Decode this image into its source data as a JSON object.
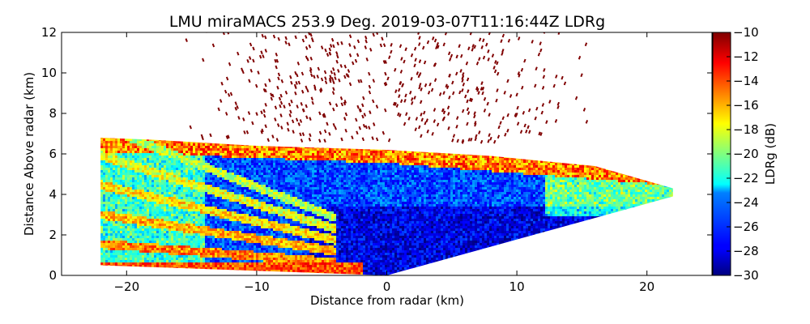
{
  "chart_data": {
    "type": "heatmap",
    "title": "LMU miraMACS 253.9 Deg. 2019-03-07T11:16:44Z  LDRg",
    "xlabel": "Distance from radar (km)",
    "ylabel": "Distance Above radar  (km)",
    "xlim": [
      -25,
      25
    ],
    "ylim": [
      0,
      12
    ],
    "xticks": [
      -20,
      -10,
      0,
      10,
      20
    ],
    "xtick_labels": [
      "−20",
      "−10",
      "0",
      "10",
      "20"
    ],
    "yticks": [
      0,
      2,
      4,
      6,
      8,
      10,
      12
    ],
    "ytick_labels": [
      "0",
      "2",
      "4",
      "6",
      "8",
      "10",
      "12"
    ],
    "colorbar": {
      "label": "LDRg (dB)",
      "range": [
        -30,
        -10
      ],
      "ticks": [
        -10,
        -12,
        -14,
        -16,
        -18,
        -20,
        -22,
        -24,
        -26,
        -28,
        -30
      ],
      "tick_labels": [
        "−10",
        "−12",
        "−14",
        "−16",
        "−18",
        "−20",
        "−22",
        "−24",
        "−26",
        "−28",
        "−30"
      ],
      "colormap": "jet"
    },
    "scan": {
      "left_edge": [
        [
          -22,
          0.5
        ],
        [
          -22,
          6.8
        ]
      ],
      "right_edge": [
        [
          0,
          0
        ],
        [
          22,
          3.9
        ]
      ],
      "cloud_top_km": 6.0,
      "dominant_ldr_db": -26,
      "cloud_top_ldr_db": -12,
      "ice_above_ldr_db": -10
    }
  },
  "colors": {
    "background": "#ffffff",
    "axes": "#000000"
  }
}
